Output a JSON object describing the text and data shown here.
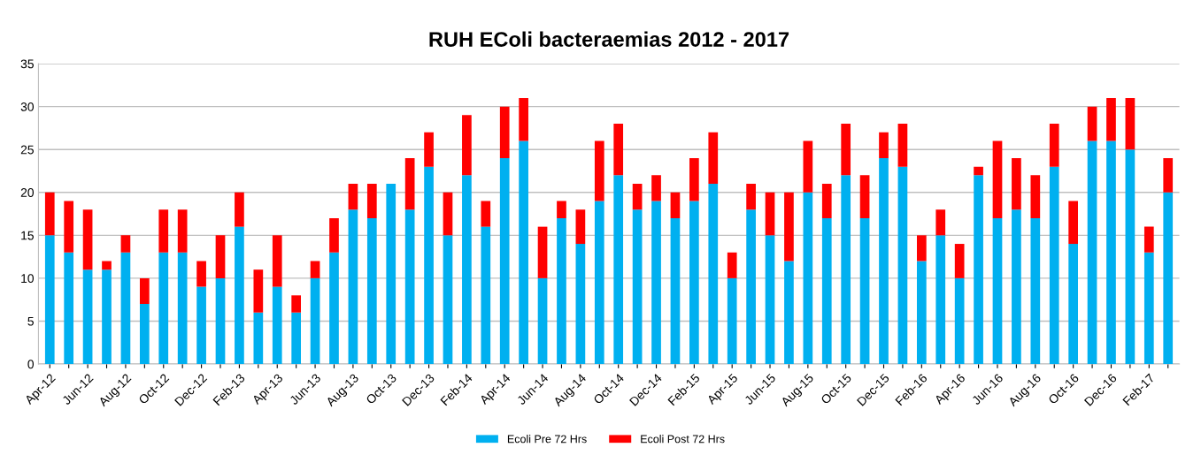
{
  "chart_data": {
    "type": "bar",
    "title": "RUH EColi bacteraemias 2012 - 2017",
    "stacked": true,
    "categories": [
      "Apr-12",
      null,
      "Jun-12",
      null,
      "Aug-12",
      null,
      "Oct-12",
      null,
      "Dec-12",
      null,
      "Feb-13",
      null,
      "Apr-13",
      null,
      "Jun-13",
      null,
      "Aug-13",
      null,
      "Oct-13",
      null,
      "Dec-13",
      null,
      "Feb-14",
      null,
      "Apr-14",
      null,
      "Jun-14",
      null,
      "Aug-14",
      null,
      "Oct-14",
      null,
      "Dec-14",
      null,
      "Feb-15",
      null,
      "Apr-15",
      null,
      "Jun-15",
      null,
      "Aug-15",
      null,
      "Oct-15",
      null,
      "Dec-15",
      null,
      "Feb-16",
      null,
      "Apr-16",
      null,
      "Jun-16",
      null,
      "Aug-16",
      null,
      "Oct-16",
      null,
      "Dec-16",
      null,
      "Feb-17",
      null
    ],
    "series": [
      {
        "name": "Ecoli Pre 72 Hrs",
        "color": "#00b0f0",
        "values": [
          15,
          13,
          11,
          11,
          13,
          7,
          13,
          13,
          9,
          10,
          16,
          6,
          9,
          6,
          10,
          13,
          18,
          17,
          21,
          18,
          23,
          15,
          22,
          16,
          24,
          26,
          10,
          17,
          14,
          19,
          22,
          18,
          19,
          17,
          19,
          21,
          10,
          18,
          15,
          12,
          20,
          17,
          22,
          17,
          24,
          23,
          12,
          15,
          10,
          22,
          17,
          18,
          17,
          23,
          14,
          26,
          26,
          25,
          13,
          20
        ]
      },
      {
        "name": "Ecoli Post 72 Hrs",
        "color": "#ff0000",
        "values": [
          5,
          6,
          7,
          1,
          2,
          3,
          5,
          5,
          3,
          5,
          4,
          5,
          6,
          2,
          2,
          4,
          3,
          4,
          0,
          6,
          4,
          5,
          7,
          3,
          6,
          5,
          6,
          2,
          4,
          7,
          6,
          3,
          3,
          3,
          5,
          6,
          3,
          3,
          5,
          8,
          6,
          4,
          6,
          5,
          3,
          5,
          3,
          3,
          4,
          1,
          9,
          6,
          5,
          5,
          5,
          4,
          5,
          6,
          3,
          4
        ]
      }
    ],
    "ylim": [
      0,
      35
    ],
    "yticks": [
      0,
      5,
      10,
      15,
      20,
      25,
      30,
      35
    ],
    "grid": "y",
    "legend": "bottom"
  }
}
